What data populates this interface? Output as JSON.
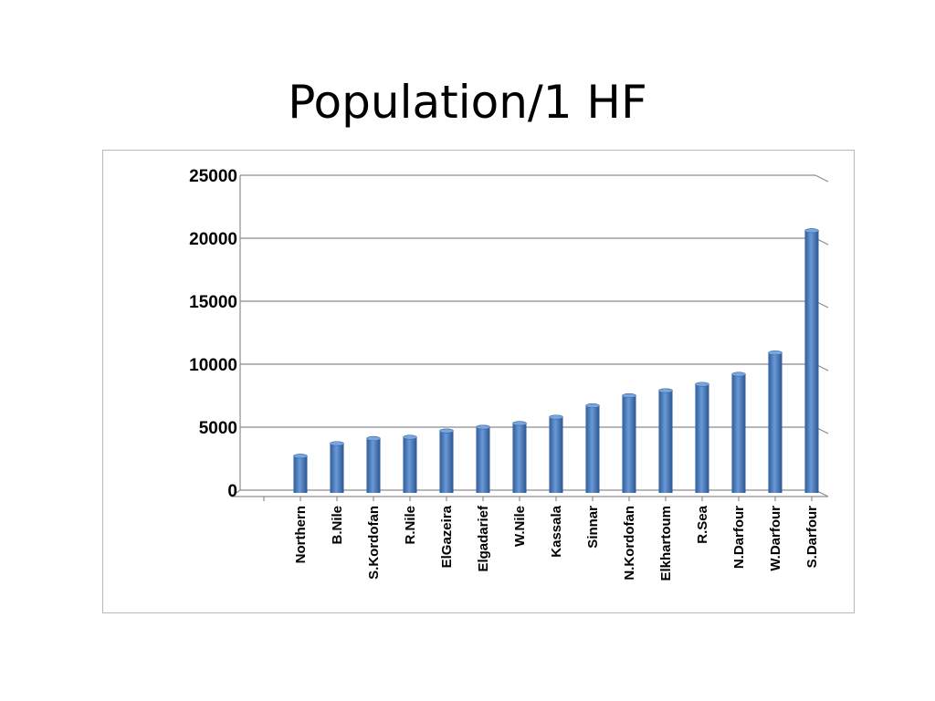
{
  "slide": {
    "title": "Population/1 HF"
  },
  "chart_data": {
    "type": "bar",
    "title": "",
    "xlabel": "",
    "ylabel": "",
    "ylim": [
      0,
      25000
    ],
    "yticks": [
      0,
      5000,
      10000,
      15000,
      20000,
      25000
    ],
    "grid": true,
    "legend": "none",
    "bar_color": "#4f7fc4",
    "bar_color_dark": "#2c5a9a",
    "categories": [
      "Northern",
      "B.Nile",
      "S.Kordofan",
      "R.Nile",
      "ElGazeira",
      "Elgadarief",
      "W.Nile",
      "Kassala",
      "Sinnar",
      "N.Kordofan",
      "Elkhartoum",
      "R.Sea",
      "N.Darfour",
      "W.Darfour",
      "S.Darfour"
    ],
    "values": [
      2700,
      3700,
      4100,
      4200,
      4700,
      5000,
      5300,
      5800,
      6700,
      7500,
      7900,
      8400,
      9200,
      10900,
      20600
    ]
  }
}
